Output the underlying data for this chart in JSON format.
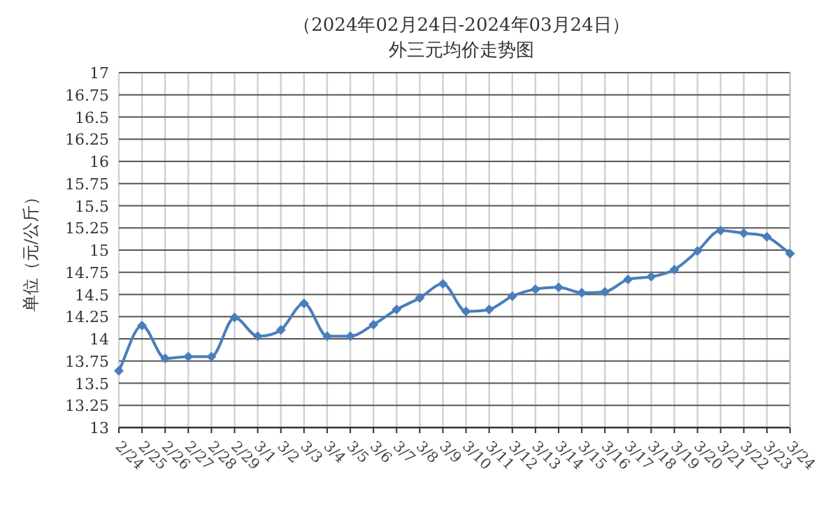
{
  "chart_data": {
    "type": "line",
    "title": "（2024年02月24日-2024年03月24日）",
    "subtitle": "外三元均价走势图",
    "ylabel": "单位（元/公斤）",
    "categories": [
      "2/24",
      "2/25",
      "2/26",
      "2/27",
      "2/28",
      "2/29",
      "3/1",
      "3/2",
      "3/3",
      "3/4",
      "3/5",
      "3/6",
      "3/7",
      "3/8",
      "3/9",
      "3/10",
      "3/11",
      "3/12",
      "3/13",
      "3/14",
      "3/15",
      "3/16",
      "3/17",
      "3/18",
      "3/19",
      "3/20",
      "3/21",
      "3/22",
      "3/23",
      "3/24"
    ],
    "series": [
      {
        "color": "#4a7ebb",
        "values": [
          13.64,
          14.15,
          13.78,
          13.8,
          13.8,
          14.24,
          14.03,
          14.1,
          14.4,
          14.03,
          14.03,
          14.16,
          14.33,
          14.46,
          14.62,
          14.31,
          14.33,
          14.48,
          14.56,
          14.58,
          14.52,
          14.53,
          14.67,
          14.7,
          14.78,
          14.99,
          15.22,
          15.19,
          15.15,
          14.96
        ]
      }
    ],
    "ylim": [
      13,
      17
    ],
    "yticks": [
      13,
      13.25,
      13.5,
      13.75,
      14,
      14.25,
      14.5,
      14.75,
      15,
      15.25,
      15.5,
      15.75,
      16,
      16.25,
      16.5,
      16.75,
      17
    ],
    "grid": true,
    "marker": "diamond",
    "line_style": "solid"
  }
}
